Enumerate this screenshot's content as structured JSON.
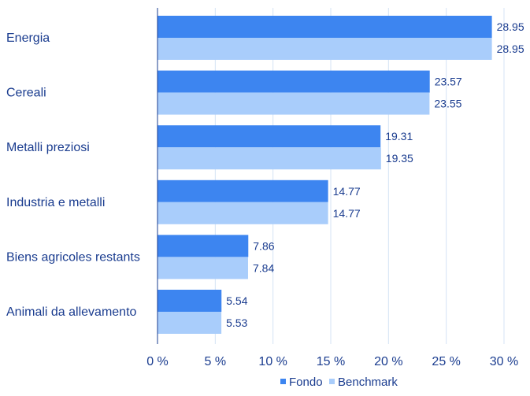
{
  "chart_data": {
    "type": "bar",
    "orientation": "horizontal",
    "categories": [
      "Energia",
      "Cereali",
      "Metalli preziosi",
      "Industria e metalli",
      "Biens agricoles restants",
      "Animali da allevamento"
    ],
    "series": [
      {
        "name": "Fondo",
        "values": [
          28.95,
          23.57,
          19.31,
          14.77,
          7.86,
          5.54
        ],
        "labels": [
          "28.95",
          "23.57",
          "19.31",
          "14.77",
          "7.86",
          "5.54"
        ],
        "color": "#3d85f0"
      },
      {
        "name": "Benchmark",
        "values": [
          28.95,
          23.55,
          19.35,
          14.77,
          7.84,
          5.53
        ],
        "labels": [
          "28.95",
          "23.55",
          "19.35",
          "14.77",
          "7.84",
          "5.53"
        ],
        "color": "#a9cdfb"
      }
    ],
    "xlim": [
      0,
      30
    ],
    "x_ticks": [
      0,
      5,
      10,
      15,
      20,
      25,
      30
    ],
    "x_tick_labels": [
      "0 %",
      "5 %",
      "10 %",
      "15 %",
      "20 %",
      "25 %",
      "30 %"
    ],
    "grid": true,
    "legend_position": "bottom-right",
    "title": "",
    "xlabel": "",
    "ylabel": "",
    "colors": {
      "text": "#1a3c8f",
      "grid": "#d4e3f5",
      "axis": "#1a3c8f"
    }
  }
}
